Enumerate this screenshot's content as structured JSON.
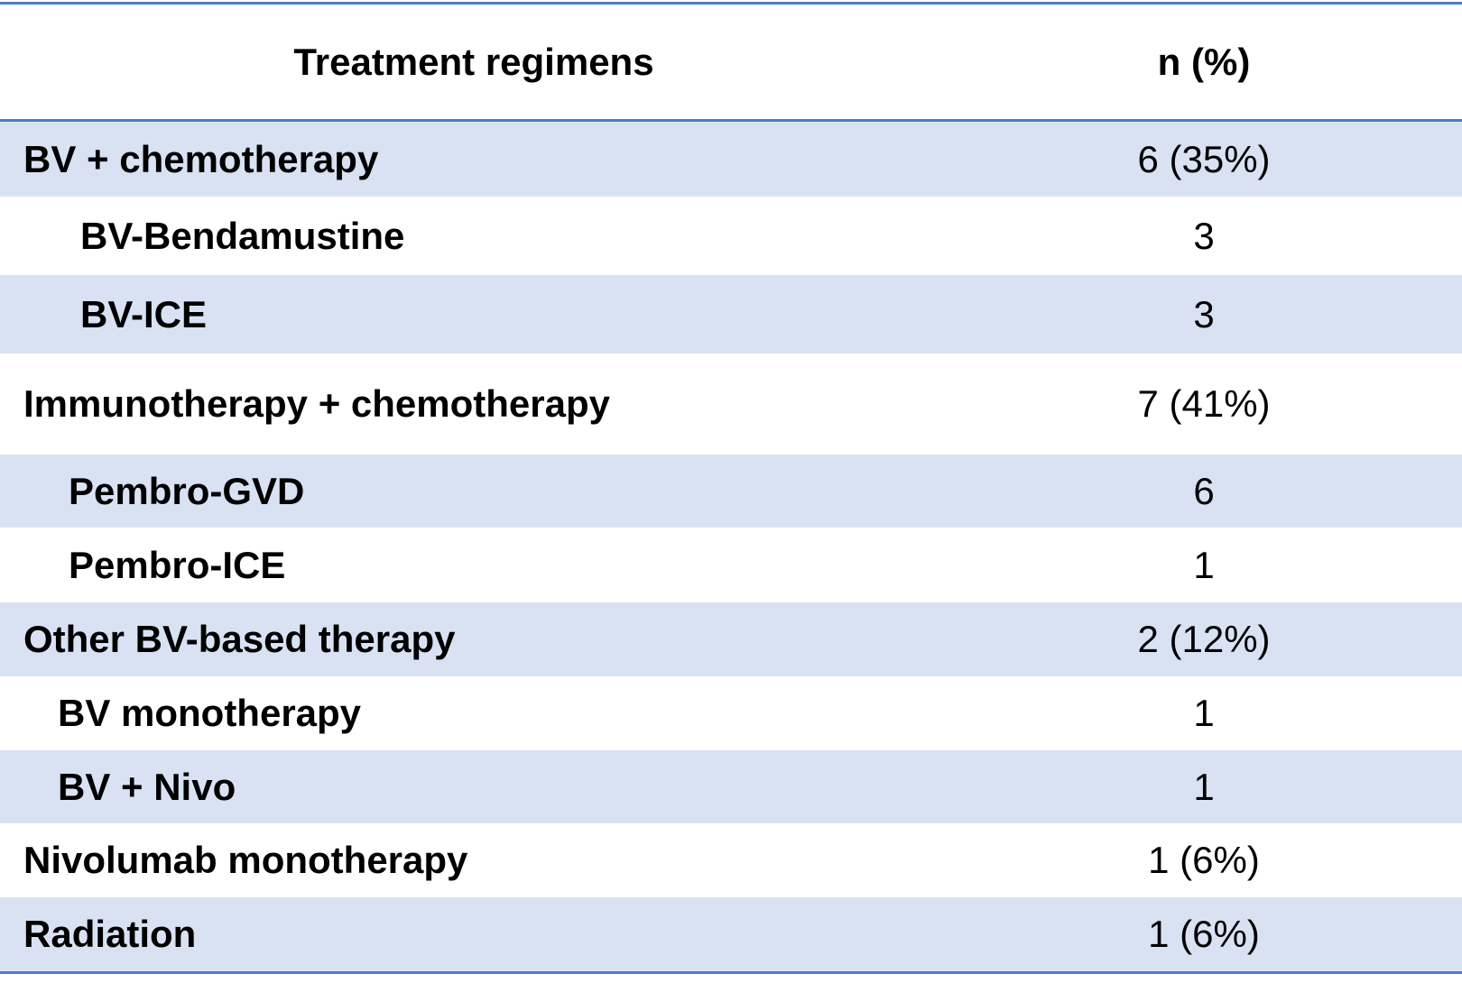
{
  "table": {
    "header": [
      "Treatment regimens",
      "n (%)"
    ],
    "rows": [
      [
        "BV + chemotherapy",
        "6 (35%)"
      ],
      [
        "BV-Bendamustine",
        "3"
      ],
      [
        "BV-ICE",
        "3"
      ],
      [
        "Immunotherapy + chemotherapy",
        "7 (41%)"
      ],
      [
        "Pembro-GVD",
        "6"
      ],
      [
        "Pembro-ICE",
        "1"
      ],
      [
        "Other BV-based therapy",
        "2 (12%)"
      ],
      [
        "BV monotherapy",
        "1"
      ],
      [
        "BV + Nivo",
        "1"
      ],
      [
        "Nivolumab monotherapy",
        "1 (6%)"
      ],
      [
        "Radiation",
        "1 (6%)"
      ]
    ]
  }
}
